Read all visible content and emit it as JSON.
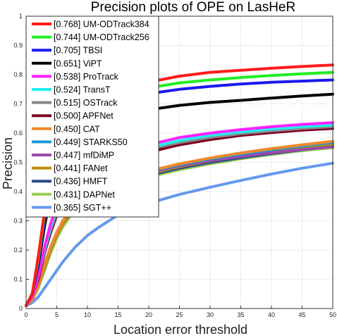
{
  "chart_data": {
    "type": "line",
    "title": "Precision plots of OPE on LasHeR",
    "xlabel": "Location error threshold",
    "ylabel": "Precision",
    "xlim": [
      0,
      50
    ],
    "ylim": [
      0,
      1
    ],
    "xticks": [
      "0",
      "5",
      "10",
      "15",
      "20",
      "25",
      "30",
      "35",
      "40",
      "45",
      "50"
    ],
    "yticks": [
      "0",
      "0.1",
      "0.2",
      "0.3",
      "0.4",
      "0.5",
      "0.6",
      "0.7",
      "0.8",
      "0.9",
      "1"
    ],
    "grid": true,
    "legend_position": "top-left",
    "x": [
      0,
      1,
      2,
      3,
      4,
      5,
      6,
      8,
      10,
      12,
      15,
      20,
      25,
      30,
      35,
      40,
      45,
      50
    ],
    "series": [
      {
        "name": "[0.768] UM-ODTrack384",
        "color": "#ff1a1a",
        "values": [
          0.01,
          0.05,
          0.18,
          0.33,
          0.45,
          0.53,
          0.59,
          0.66,
          0.7,
          0.725,
          0.75,
          0.775,
          0.795,
          0.808,
          0.815,
          0.822,
          0.828,
          0.833
        ]
      },
      {
        "name": "[0.744] UM-ODTrack256",
        "color": "#22ee22",
        "values": [
          0.01,
          0.05,
          0.17,
          0.32,
          0.44,
          0.52,
          0.58,
          0.65,
          0.69,
          0.715,
          0.735,
          0.755,
          0.772,
          0.782,
          0.79,
          0.797,
          0.803,
          0.808
        ]
      },
      {
        "name": "[0.705] TBSI",
        "color": "#1a1aee",
        "values": [
          0.01,
          0.05,
          0.16,
          0.3,
          0.42,
          0.5,
          0.56,
          0.63,
          0.67,
          0.695,
          0.715,
          0.735,
          0.75,
          0.76,
          0.768,
          0.774,
          0.778,
          0.782
        ]
      },
      {
        "name": "[0.651] ViPT",
        "color": "#000000",
        "values": [
          0.01,
          0.05,
          0.15,
          0.28,
          0.39,
          0.47,
          0.53,
          0.59,
          0.63,
          0.65,
          0.665,
          0.68,
          0.695,
          0.705,
          0.712,
          0.72,
          0.727,
          0.733
        ]
      },
      {
        "name": "[0.538] ProTrack",
        "color": "#ff22ff",
        "values": [
          0.01,
          0.04,
          0.11,
          0.21,
          0.29,
          0.35,
          0.4,
          0.45,
          0.49,
          0.51,
          0.535,
          0.56,
          0.585,
          0.6,
          0.612,
          0.622,
          0.63,
          0.636
        ]
      },
      {
        "name": "[0.524] TransT",
        "color": "#22eeee",
        "values": [
          0.01,
          0.04,
          0.11,
          0.2,
          0.28,
          0.34,
          0.39,
          0.44,
          0.48,
          0.5,
          0.525,
          0.55,
          0.575,
          0.592,
          0.604,
          0.614,
          0.622,
          0.628
        ]
      },
      {
        "name": "[0.515] OSTrack",
        "color": "#888888",
        "values": [
          0.01,
          0.04,
          0.11,
          0.2,
          0.27,
          0.33,
          0.38,
          0.43,
          0.47,
          0.49,
          0.515,
          0.545,
          0.568,
          0.585,
          0.598,
          0.608,
          0.616,
          0.622
        ]
      },
      {
        "name": "[0.500] APFNet",
        "color": "#7a0022",
        "values": [
          0.01,
          0.04,
          0.1,
          0.19,
          0.26,
          0.32,
          0.36,
          0.42,
          0.455,
          0.475,
          0.5,
          0.535,
          0.56,
          0.578,
          0.592,
          0.602,
          0.61,
          0.616
        ]
      },
      {
        "name": "[0.450] CAT",
        "color": "#f0882a",
        "values": [
          0.01,
          0.03,
          0.08,
          0.15,
          0.21,
          0.26,
          0.3,
          0.36,
          0.4,
          0.42,
          0.445,
          0.47,
          0.495,
          0.515,
          0.532,
          0.547,
          0.56,
          0.572
        ]
      },
      {
        "name": "[0.449] STARKS50",
        "color": "#1a9ad6",
        "values": [
          0.01,
          0.03,
          0.08,
          0.15,
          0.21,
          0.26,
          0.3,
          0.36,
          0.4,
          0.42,
          0.443,
          0.468,
          0.492,
          0.512,
          0.528,
          0.543,
          0.556,
          0.568
        ]
      },
      {
        "name": "[0.447] mfDiMP",
        "color": "#9a4aaa",
        "values": [
          0.01,
          0.03,
          0.08,
          0.15,
          0.21,
          0.26,
          0.3,
          0.355,
          0.395,
          0.415,
          0.44,
          0.465,
          0.488,
          0.506,
          0.52,
          0.533,
          0.544,
          0.553
        ]
      },
      {
        "name": "[0.441] FANet",
        "color": "#b8900a",
        "values": [
          0.01,
          0.03,
          0.08,
          0.14,
          0.2,
          0.25,
          0.29,
          0.35,
          0.39,
          0.41,
          0.435,
          0.46,
          0.485,
          0.505,
          0.522,
          0.537,
          0.55,
          0.562
        ]
      },
      {
        "name": "[0.436] HMFT",
        "color": "#2a4a8a",
        "values": [
          0.01,
          0.03,
          0.08,
          0.14,
          0.2,
          0.25,
          0.29,
          0.345,
          0.385,
          0.405,
          0.43,
          0.455,
          0.48,
          0.5,
          0.516,
          0.53,
          0.543,
          0.555
        ]
      },
      {
        "name": "[0.431] DAPNet",
        "color": "#99cc55",
        "values": [
          0.01,
          0.03,
          0.07,
          0.13,
          0.19,
          0.24,
          0.28,
          0.34,
          0.38,
          0.4,
          0.425,
          0.45,
          0.475,
          0.495,
          0.512,
          0.527,
          0.54,
          0.55
        ]
      },
      {
        "name": "[0.365] SGT++",
        "color": "#6699ee",
        "values": [
          0.01,
          0.02,
          0.04,
          0.07,
          0.1,
          0.13,
          0.16,
          0.21,
          0.25,
          0.28,
          0.32,
          0.36,
          0.39,
          0.415,
          0.438,
          0.46,
          0.48,
          0.497
        ]
      }
    ]
  }
}
